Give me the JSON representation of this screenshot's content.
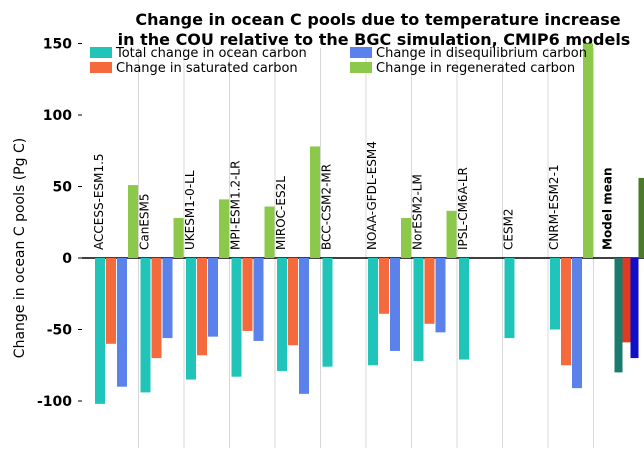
{
  "chart_data": {
    "type": "bar",
    "title_lines": [
      "Change in ocean C pools due to temperature increase",
      "in the COU relative to the BGC simulation, CMIP6 models"
    ],
    "ylabel": "Change in ocean C pools (Pg C)",
    "ylim": [
      -103,
      150
    ],
    "yticks": [
      150,
      100,
      50,
      0,
      -50,
      -100
    ],
    "ytick_labels": [
      "150",
      "100",
      "50",
      "0",
      "-50",
      "-100"
    ],
    "grid": "vertical-separators",
    "legend_position": "top",
    "categories": [
      "ACCESS-ESM1.5",
      "CanESM5",
      "UKESM1-0-LL",
      "MPI-ESM1.2-LR",
      "MIROC-ES2L",
      "BCC-CSM2-MR",
      "NOAA-GFDL-ESM4",
      "NorESM2-LM",
      "IPSL-CM6A-LR",
      "CESM2",
      "CNRM-ESM2-1",
      "Model mean"
    ],
    "series": [
      {
        "name": "Total change in ocean carbon",
        "color": "#20c4b8",
        "mean_color": "#1a7a6c",
        "values": [
          -102,
          -94,
          -85,
          -83,
          -79,
          -76,
          -75,
          -72,
          -71,
          -56,
          -50,
          -80
        ]
      },
      {
        "name": "Change in saturated carbon",
        "color": "#f56a3c",
        "mean_color": "#e03a22",
        "values": [
          -60,
          -70,
          -68,
          -51,
          -61,
          null,
          -39,
          -46,
          null,
          null,
          -75,
          -59
        ]
      },
      {
        "name": "Change in disequilibrium carbon",
        "color": "#5b82ea",
        "mean_color": "#1010c8",
        "values": [
          -90,
          -56,
          -55,
          -58,
          -95,
          null,
          -65,
          -52,
          null,
          null,
          -91,
          -70
        ]
      },
      {
        "name": "Change in regenerated carbon",
        "color": "#8cc84a",
        "mean_color": "#4a7a2a",
        "values": [
          51,
          28,
          41,
          36,
          78,
          null,
          28,
          33,
          null,
          null,
          150,
          56
        ]
      }
    ]
  }
}
